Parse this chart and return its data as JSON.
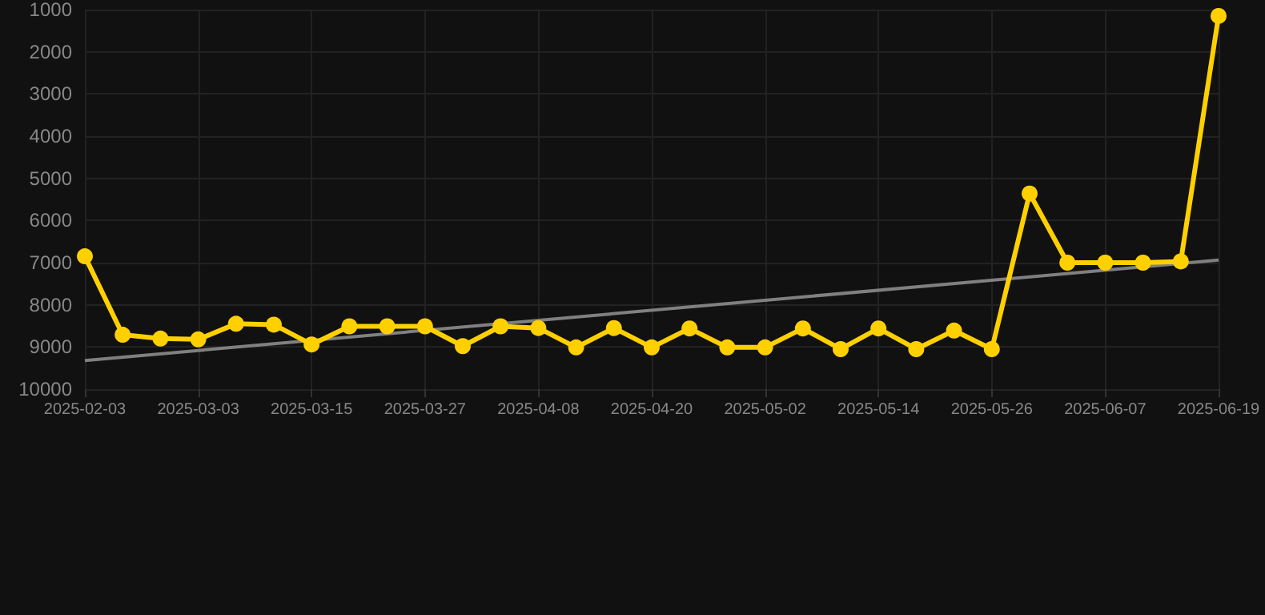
{
  "chart_data": {
    "type": "line",
    "categories": [
      "2025-02-03",
      null,
      null,
      "2025-03-03",
      null,
      null,
      "2025-03-15",
      null,
      null,
      "2025-03-27",
      null,
      null,
      "2025-04-08",
      null,
      null,
      "2025-04-20",
      null,
      null,
      "2025-05-02",
      null,
      null,
      "2025-05-14",
      null,
      null,
      "2025-05-26",
      null,
      null,
      "2025-06-07",
      null,
      null,
      "2025-06-19"
    ],
    "series": [
      {
        "color": "#ffd000",
        "marker": "circle",
        "values": [
          6850,
          8710,
          8800,
          8820,
          8450,
          8470,
          8940,
          8510,
          8510,
          8510,
          8980,
          8510,
          8550,
          9010,
          8550,
          9010,
          8560,
          9010,
          9010,
          8560,
          9050,
          8560,
          9050,
          8610,
          9050,
          5360,
          7000,
          7000,
          7000,
          6970,
          1150
        ]
      },
      {
        "type": "line",
        "color": "#808080",
        "marker": "none",
        "values": [
          9320,
          null,
          null,
          null,
          null,
          null,
          null,
          null,
          null,
          null,
          null,
          null,
          null,
          null,
          null,
          null,
          null,
          null,
          null,
          null,
          null,
          null,
          null,
          null,
          null,
          null,
          null,
          null,
          null,
          null,
          6940
        ]
      }
    ],
    "ylim": [
      10000,
      1000
    ],
    "yticks": [
      1000,
      2000,
      3000,
      4000,
      5000,
      6000,
      7000,
      8000,
      9000,
      10000
    ],
    "grid": true
  }
}
